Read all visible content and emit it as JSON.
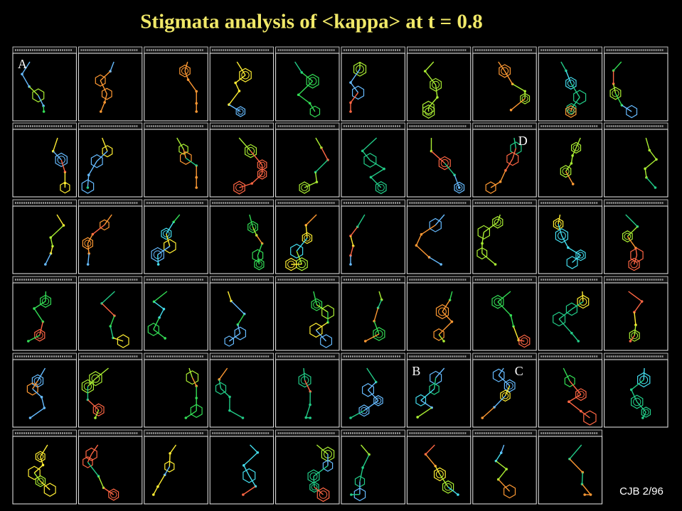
{
  "title": "Stigmata analysis of <kappa> at t = 0.8",
  "panel_labels": [
    "A",
    "D",
    "B",
    "C"
  ],
  "footer": "CJB 2/96"
}
